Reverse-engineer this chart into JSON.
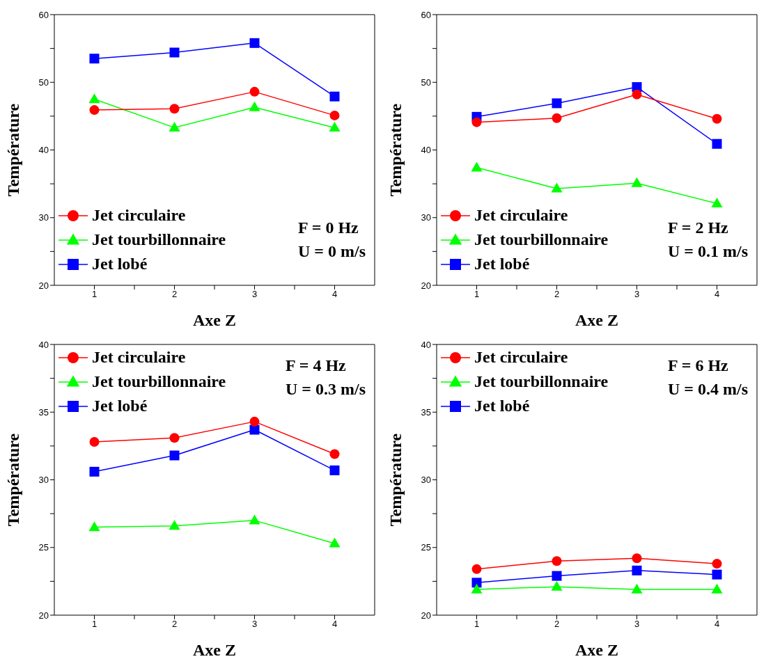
{
  "chart_data": [
    {
      "type": "line",
      "xlabel": "Axe Z",
      "ylabel": "Température",
      "x": [
        1,
        2,
        3,
        4
      ],
      "xlim": [
        0.5,
        4.5
      ],
      "xticks": [
        1,
        {
          "value": 1.5,
          "label": null
        },
        2,
        {
          "value": 2.5,
          "label": null
        },
        3,
        {
          "value": 3.5,
          "label": null
        },
        4
      ],
      "ylim": [
        20,
        60
      ],
      "yticks": [
        20,
        {
          "value": 25,
          "label": null
        },
        30,
        {
          "value": 35,
          "label": null
        },
        40,
        {
          "value": 45,
          "label": null
        },
        50,
        {
          "value": 55,
          "label": null
        },
        60
      ],
      "legend": "bottom left",
      "annotations": [
        "F = 0 Hz",
        "U = 0 m/s"
      ],
      "series": [
        {
          "name": "Jet circulaire",
          "color": "#ff0000",
          "marker": "circle",
          "values": [
            45.9,
            46.1,
            48.6,
            45.1
          ]
        },
        {
          "name": "Jet tourbillonnaire",
          "color": "#00ff00",
          "marker": "triangle",
          "values": [
            47.5,
            43.3,
            46.3,
            43.3
          ]
        },
        {
          "name": "Jet lobé",
          "color": "#0000ff",
          "marker": "square",
          "values": [
            53.5,
            54.4,
            55.8,
            47.9
          ]
        }
      ]
    },
    {
      "type": "line",
      "xlabel": "Axe Z",
      "ylabel": "Température",
      "x": [
        1,
        2,
        3,
        4
      ],
      "xlim": [
        0.5,
        4.5
      ],
      "xticks": [
        1,
        {
          "value": 1.5,
          "label": null
        },
        2,
        {
          "value": 2.5,
          "label": null
        },
        3,
        {
          "value": 3.5,
          "label": null
        },
        4
      ],
      "ylim": [
        20,
        60
      ],
      "yticks": [
        20,
        {
          "value": 25,
          "label": null
        },
        30,
        {
          "value": 35,
          "label": null
        },
        40,
        {
          "value": 45,
          "label": null
        },
        50,
        {
          "value": 55,
          "label": null
        },
        60
      ],
      "legend": "bottom left",
      "annotations": [
        "F = 2 Hz",
        "U = 0.1 m/s"
      ],
      "series": [
        {
          "name": "Jet circulaire",
          "color": "#ff0000",
          "marker": "circle",
          "values": [
            44.1,
            44.7,
            48.2,
            44.6
          ]
        },
        {
          "name": "Jet tourbillonnaire",
          "color": "#00ff00",
          "marker": "triangle",
          "values": [
            37.4,
            34.3,
            35.1,
            32.1
          ]
        },
        {
          "name": "Jet lobé",
          "color": "#0000ff",
          "marker": "square",
          "values": [
            44.9,
            46.9,
            49.3,
            40.9
          ]
        }
      ]
    },
    {
      "type": "line",
      "xlabel": "Axe Z",
      "ylabel": "Température",
      "x": [
        1,
        2,
        3,
        4
      ],
      "xlim": [
        0.5,
        4.5
      ],
      "xticks": [
        1,
        {
          "value": 1.5,
          "label": null
        },
        2,
        {
          "value": 2.5,
          "label": null
        },
        3,
        {
          "value": 3.5,
          "label": null
        },
        4
      ],
      "ylim": [
        20,
        40
      ],
      "yticks": [
        20,
        {
          "value": 22.5,
          "label": null
        },
        25,
        {
          "value": 27.5,
          "label": null
        },
        30,
        {
          "value": 32.5,
          "label": null
        },
        35,
        {
          "value": 37.5,
          "label": null
        },
        40
      ],
      "legend": "top left",
      "annotations": [
        "F = 4 Hz",
        "U = 0.3 m/s"
      ],
      "series": [
        {
          "name": "Jet circulaire",
          "color": "#ff0000",
          "marker": "circle",
          "values": [
            32.8,
            33.1,
            34.3,
            31.9
          ]
        },
        {
          "name": "Jet tourbillonnaire",
          "color": "#00ff00",
          "marker": "triangle",
          "values": [
            26.5,
            26.6,
            27.0,
            25.3
          ]
        },
        {
          "name": "Jet lobé",
          "color": "#0000ff",
          "marker": "square",
          "values": [
            30.6,
            31.8,
            33.7,
            30.7
          ]
        }
      ]
    },
    {
      "type": "line",
      "xlabel": "Axe Z",
      "ylabel": "Température",
      "x": [
        1,
        2,
        3,
        4
      ],
      "xlim": [
        0.5,
        4.5
      ],
      "xticks": [
        1,
        {
          "value": 1.5,
          "label": null
        },
        2,
        {
          "value": 2.5,
          "label": null
        },
        3,
        {
          "value": 3.5,
          "label": null
        },
        4
      ],
      "ylim": [
        20,
        40
      ],
      "yticks": [
        20,
        {
          "value": 22.5,
          "label": null
        },
        25,
        {
          "value": 27.5,
          "label": null
        },
        30,
        {
          "value": 32.5,
          "label": null
        },
        35,
        {
          "value": 37.5,
          "label": null
        },
        40
      ],
      "legend": "top left",
      "annotations": [
        "F = 6 Hz",
        "U = 0.4 m/s"
      ],
      "series": [
        {
          "name": "Jet circulaire",
          "color": "#ff0000",
          "marker": "circle",
          "values": [
            23.4,
            24.0,
            24.2,
            23.8
          ]
        },
        {
          "name": "Jet tourbillonnaire",
          "color": "#00ff00",
          "marker": "triangle",
          "values": [
            21.9,
            22.1,
            21.9,
            21.9
          ]
        },
        {
          "name": "Jet lobé",
          "color": "#0000ff",
          "marker": "square",
          "values": [
            22.4,
            22.9,
            23.3,
            23.0
          ]
        }
      ]
    }
  ]
}
